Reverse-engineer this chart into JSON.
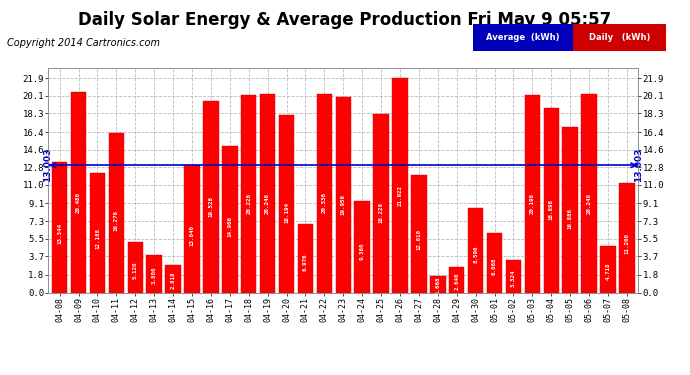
{
  "title": "Daily Solar Energy & Average Production Fri May 9 05:57",
  "copyright": "Copyright 2014 Cartronics.com",
  "average_label": "13.003",
  "average_value": 13.003,
  "categories": [
    "04-08",
    "04-09",
    "04-10",
    "04-11",
    "04-12",
    "04-13",
    "04-14",
    "04-15",
    "04-16",
    "04-17",
    "04-18",
    "04-19",
    "04-20",
    "04-21",
    "04-22",
    "04-23",
    "04-24",
    "04-25",
    "04-26",
    "04-27",
    "04-28",
    "04-29",
    "04-30",
    "05-01",
    "05-02",
    "05-03",
    "05-04",
    "05-05",
    "05-06",
    "05-07",
    "05-08"
  ],
  "values": [
    13.344,
    20.48,
    12.188,
    16.276,
    5.12,
    3.806,
    2.818,
    13.04,
    19.528,
    14.966,
    20.226,
    20.246,
    18.194,
    6.976,
    20.336,
    19.956,
    9.36,
    18.228,
    21.922,
    12.01,
    1.668,
    2.64,
    8.596,
    6.068,
    3.324,
    20.198,
    18.898,
    16.886,
    20.248,
    4.718,
    11.2
  ],
  "bar_color": "#ff0000",
  "avg_line_color": "#0000cc",
  "background_color": "#ffffff",
  "grid_color": "#bbbbbb",
  "yticks": [
    0.0,
    1.8,
    3.7,
    5.5,
    7.3,
    9.1,
    11.0,
    12.8,
    14.6,
    16.4,
    18.3,
    20.1,
    21.9
  ],
  "legend_avg_bg": "#0000bb",
  "legend_daily_bg": "#cc0000",
  "title_fontsize": 12,
  "copyright_fontsize": 7,
  "ymax": 23.0
}
